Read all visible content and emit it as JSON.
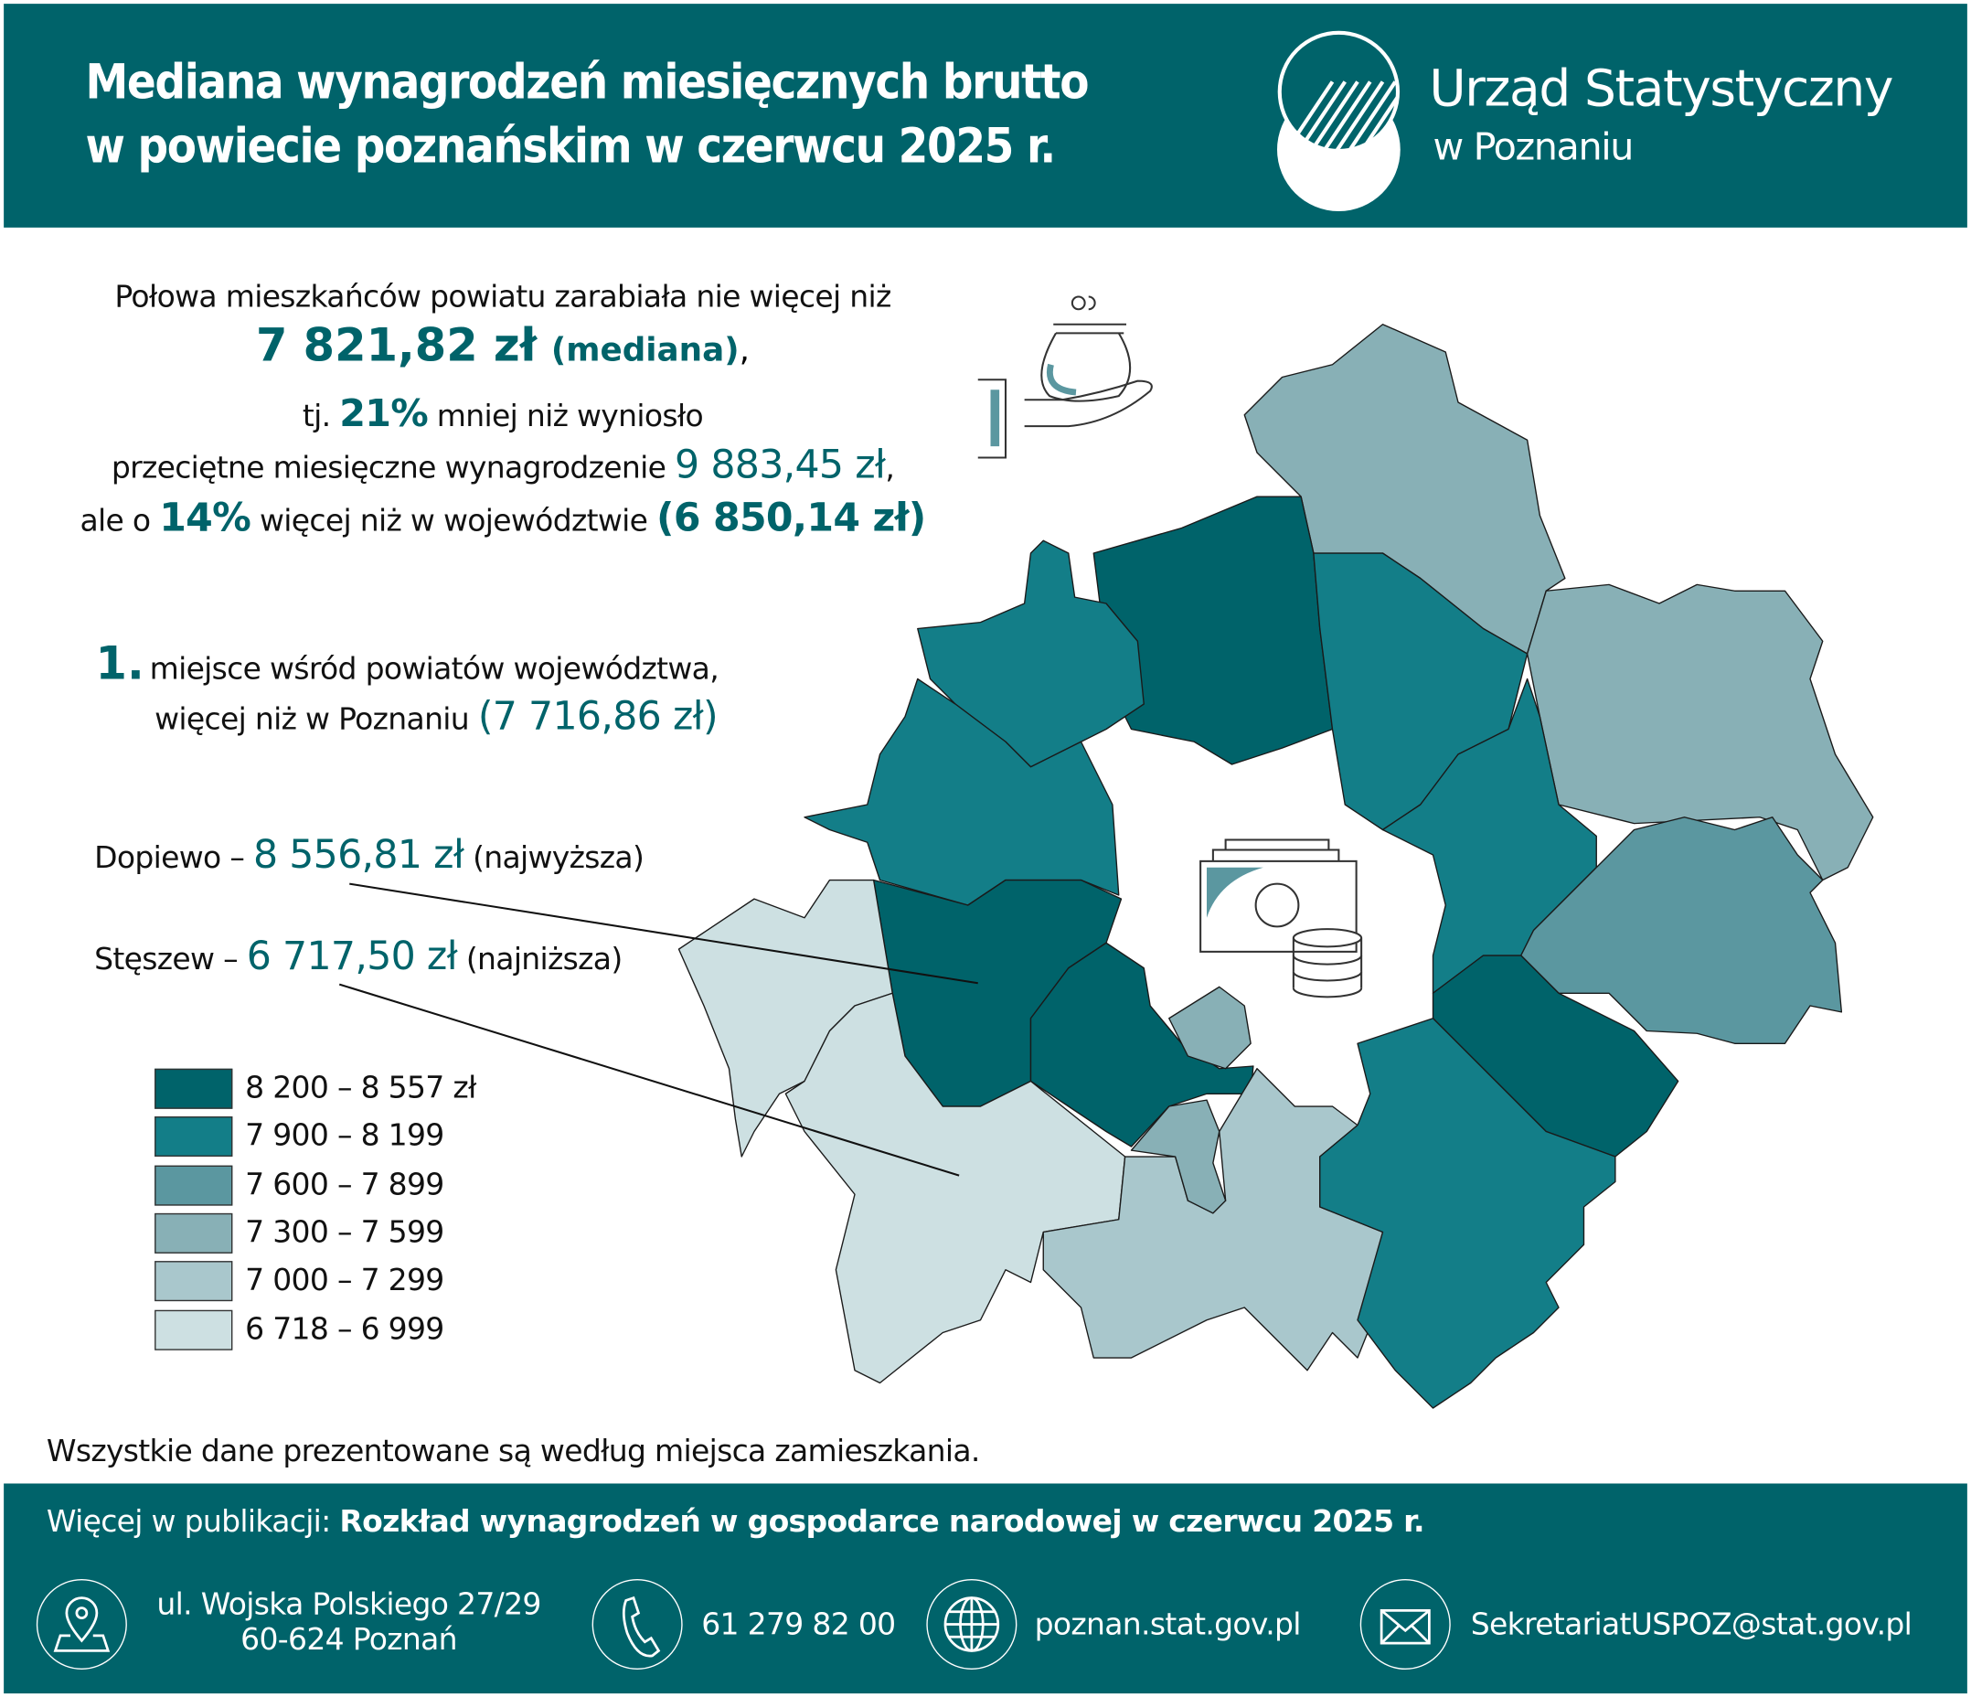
{
  "header": {
    "title_line1": "Mediana wynagrodzeń miesięcznych brutto",
    "title_line2": "w powiecie poznańskim w czerwcu 2025 r.",
    "logo_name": "Urząd Statystyczny",
    "logo_sub": "w Poznaniu"
  },
  "summary": {
    "line1": "Połowa mieszkańców powiatu zarabiała nie więcej niż",
    "median_value": "7 821,82 zł",
    "median_label": "(mediana)",
    "line3_a": "tj.",
    "line3_pct": "21%",
    "line3_b": "mniej niż wyniosło",
    "line4_a": "przeciętne miesięczne wynagrodzenie",
    "line4_value": "9 883,45 zł",
    "line5_a": "ale o",
    "line5_pct": "14%",
    "line5_b": "więcej niż w województwie",
    "line5_value": "(6 850,14 zł)"
  },
  "rank": {
    "number": "1.",
    "line1": "miejsce wśród powiatów województwa,",
    "line2": "więcej niż w Poznaniu",
    "value": "(7 716,86 zł)"
  },
  "highest": {
    "name": "Dopiewo –",
    "value": "8 556,81 zł",
    "note": "(najwyższa)"
  },
  "lowest": {
    "name": "Stęszew –",
    "value": "6 717,50 zł",
    "note": "(najniższa)"
  },
  "legend": [
    {
      "label": "8 200 – 8 557 zł",
      "color": "#00636a"
    },
    {
      "label": "7 900 – 8 199",
      "color": "#137e88"
    },
    {
      "label": "7 600 – 7 899",
      "color": "#5b97a0"
    },
    {
      "label": "7 300 – 7 599",
      "color": "#88b0b6"
    },
    {
      "label": "7 000 – 7 299",
      "color": "#a9c7cc"
    },
    {
      "label": "6 718 – 6 999",
      "color": "#cde0e2"
    }
  ],
  "note": "Wszystkie dane prezentowane są według miejsca zamieszkania.",
  "footer": {
    "more_label": "Więcej w publikacji:",
    "publication": "Rozkład wynagrodzeń w gospodarce narodowej w czerwcu 2025 r.",
    "address_line1": "ul. Wojska Polskiego 27/29",
    "address_line2": "60-624 Poznań",
    "phone": "61 279 82 00",
    "website": "poznan.stat.gov.pl",
    "email": "SekretariatUSPOZ@stat.gov.pl",
    "icons": [
      "map-pin-icon",
      "phone-icon",
      "globe-icon",
      "envelope-icon"
    ]
  },
  "colors": {
    "brand": "#00636a",
    "accent": "#137e88"
  }
}
